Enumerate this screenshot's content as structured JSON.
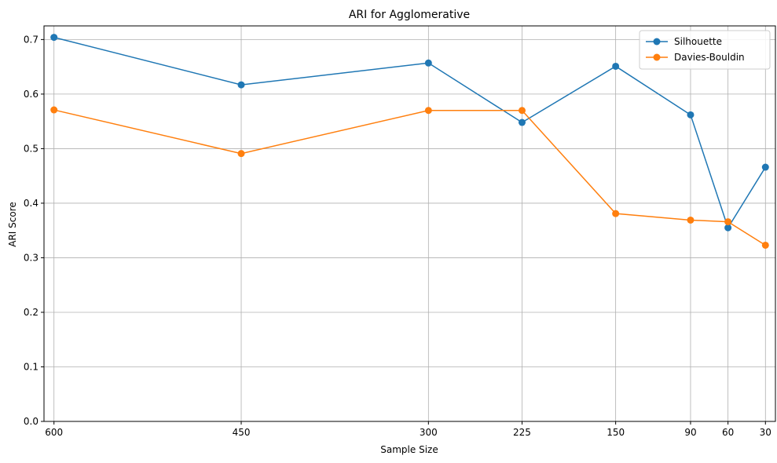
{
  "chart_data": {
    "type": "line",
    "title": "ARI for Agglomerative",
    "xlabel": "Sample Size",
    "ylabel": "ARI Score",
    "x_direction": "decreasing",
    "x": [
      600,
      450,
      300,
      225,
      150,
      90,
      60,
      30
    ],
    "xlim": [
      608,
      22
    ],
    "ylim": [
      0,
      0.725
    ],
    "yticks": [
      0.0,
      0.1,
      0.2,
      0.3,
      0.4,
      0.5,
      0.6,
      0.7
    ],
    "grid": true,
    "legend": "top-right",
    "series": [
      {
        "name": "Silhouette",
        "color": "#1f77b4",
        "marker": "circle",
        "values": [
          0.704,
          0.617,
          0.657,
          0.548,
          0.651,
          0.562,
          0.355,
          0.466
        ]
      },
      {
        "name": "Davies-Bouldin",
        "color": "#ff7f0e",
        "marker": "circle",
        "values": [
          0.571,
          0.491,
          0.57,
          0.57,
          0.381,
          0.369,
          0.366,
          0.323
        ]
      }
    ]
  }
}
